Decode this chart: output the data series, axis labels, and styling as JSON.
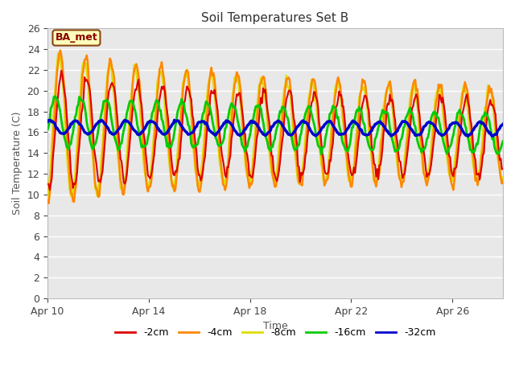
{
  "title": "Soil Temperatures Set B",
  "xlabel": "Time",
  "ylabel": "Soil Temperature (C)",
  "annotation": "BA_met",
  "ylim": [
    0,
    26
  ],
  "yticks": [
    0,
    2,
    4,
    6,
    8,
    10,
    12,
    14,
    16,
    18,
    20,
    22,
    24,
    26
  ],
  "xlim": [
    10,
    28
  ],
  "xtick_positions": [
    10,
    14,
    18,
    22,
    26
  ],
  "xtick_labels": [
    "Apr 10",
    "Apr 14",
    "Apr 18",
    "Apr 22",
    "Apr 26"
  ],
  "series_colors": {
    "-2cm": "#dd0000",
    "-4cm": "#ff8800",
    "-8cm": "#dddd00",
    "-16cm": "#00cc00",
    "-32cm": "#0000cc"
  },
  "fig_bg": "#ffffff",
  "plot_bg": "#e8e8e8",
  "grid_color": "#ffffff",
  "legend_labels": [
    "-2cm",
    "-4cm",
    "-8cm",
    "-16cm",
    "-32cm"
  ],
  "annotation_facecolor": "#ffffbb",
  "annotation_edgecolor": "#8B4513",
  "annotation_textcolor": "#8B0000"
}
